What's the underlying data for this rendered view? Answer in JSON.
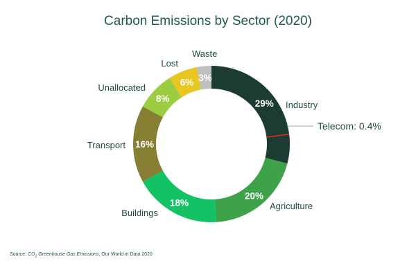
{
  "chart_data": {
    "type": "pie",
    "variant": "donut",
    "title": "Carbon Emissions by Sector (2020)",
    "unit": "%",
    "slices": [
      {
        "label": "Industry",
        "value": 29,
        "display": "29%",
        "color": "#1c3b31"
      },
      {
        "label": "Agriculture",
        "value": 20,
        "display": "20%",
        "color": "#3da24a"
      },
      {
        "label": "Buildings",
        "value": 18,
        "display": "18%",
        "color": "#12c265"
      },
      {
        "label": "Transport",
        "value": 16,
        "display": "16%",
        "color": "#867f33"
      },
      {
        "label": "Unallocated",
        "value": 8,
        "display": "8%",
        "color": "#9ccc3f"
      },
      {
        "label": "Lost",
        "value": 6,
        "display": "6%",
        "color": "#e9c722"
      },
      {
        "label": "Waste",
        "value": 3,
        "display": "3%",
        "color": "#bfbfbf"
      }
    ],
    "callout": {
      "label": "Telecom: 0.4%",
      "value": 0.4,
      "color": "#d4351c",
      "line_color": "#a6a6a6"
    }
  },
  "source": {
    "prefix": "Source: ",
    "co": "CO",
    "sub": "2",
    "italic_rest": " Greenhouse Gas Emissions",
    "suffix": ", Our World in Data 2020"
  }
}
